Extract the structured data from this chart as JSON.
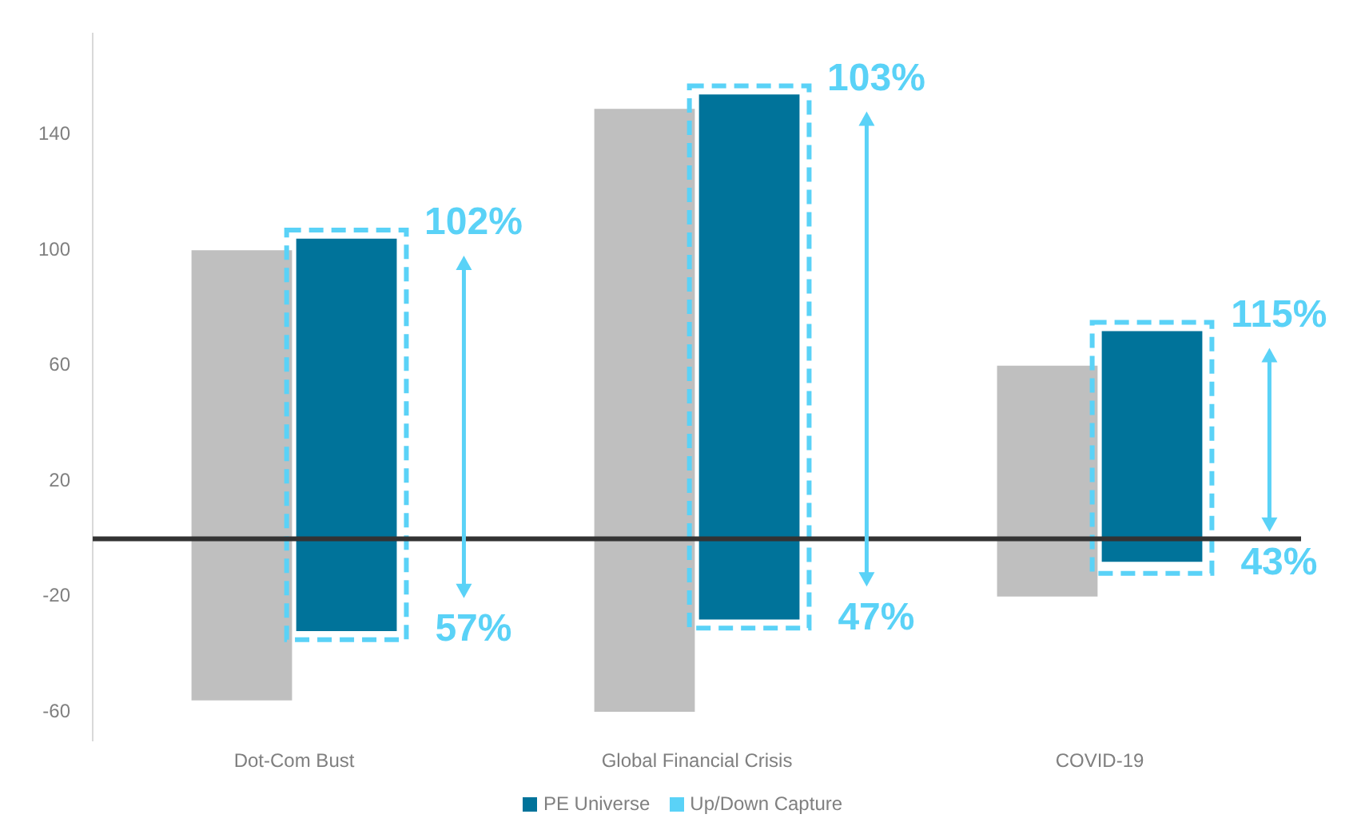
{
  "chart_data": {
    "type": "bar",
    "categories": [
      "Dot-Com Bust",
      "Global Financial Crisis",
      "COVID-19"
    ],
    "series": [
      {
        "color": "#bfbfbf",
        "base": [
          -56,
          -60,
          -20
        ],
        "values": [
          156,
          209,
          80
        ]
      },
      {
        "name": "PE Universe",
        "color": "#00739a",
        "base": [
          -32,
          -28,
          -8
        ],
        "values": [
          136,
          182,
          80
        ]
      },
      {
        "name": "Up/Down Capture",
        "color": "#5ad2f7",
        "line_style": "dashed",
        "base": [
          -35,
          -31,
          -12
        ],
        "values": [
          142,
          188,
          87
        ]
      }
    ],
    "ylim": [
      -70,
      175
    ],
    "yticks": [
      -60,
      -20,
      20,
      60,
      100,
      140
    ],
    "grid": false,
    "legend": "bottom",
    "ref_lines": [
      {
        "axis": "y",
        "value": 0,
        "color": "#333333"
      }
    ],
    "annotations": [
      "102%",
      "57%",
      "103%",
      "47%",
      "115%",
      "43%"
    ]
  }
}
